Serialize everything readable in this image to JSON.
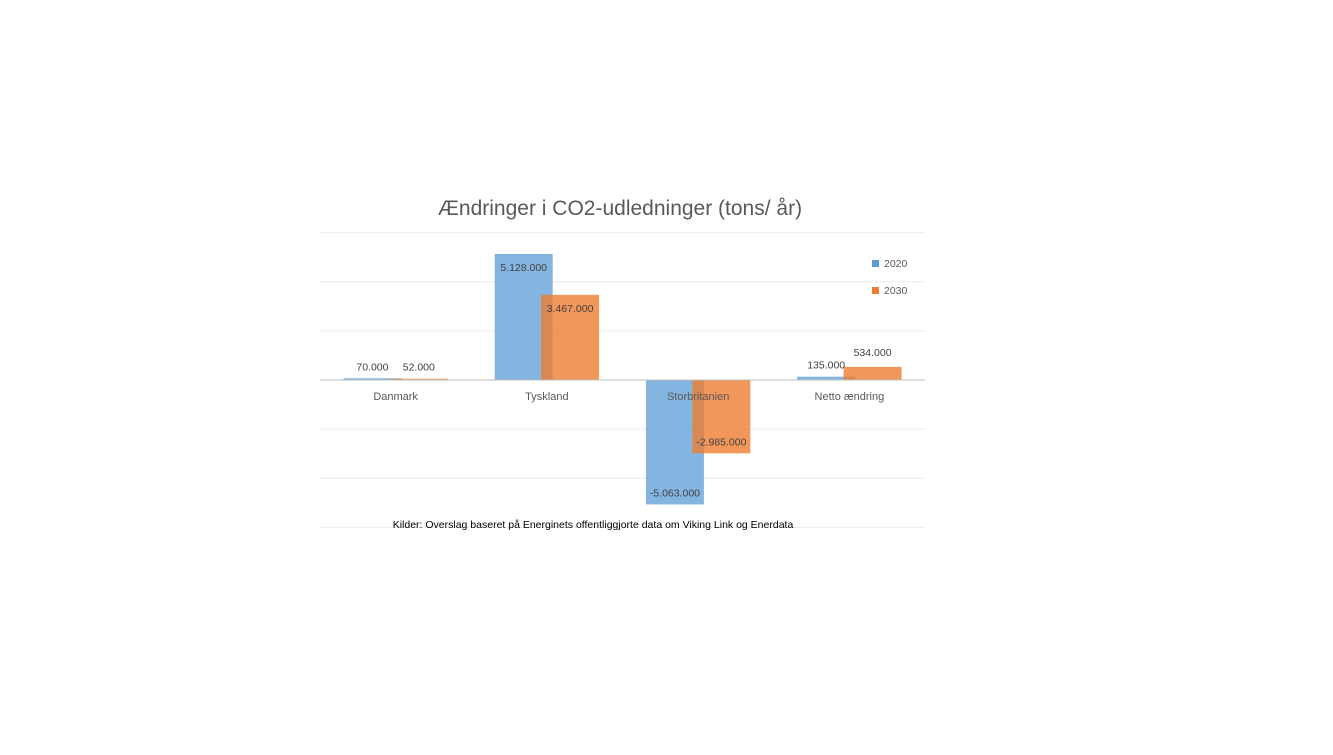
{
  "chart_data": {
    "type": "bar",
    "title": "Ændringer i CO2-udledninger (tons/ år)",
    "categories": [
      "Danmark",
      "Tyskland",
      "Storbritanien",
      "Netto ændring"
    ],
    "series": [
      {
        "name": "2020",
        "color": "#5b9bd5",
        "values": [
          70000,
          5128000,
          -5063000,
          135000
        ],
        "labels": [
          "70.000",
          "5.128.000",
          "-5.063.000",
          "135.000"
        ]
      },
      {
        "name": "2030",
        "color": "#ed7d31",
        "values": [
          52000,
          3467000,
          -2985000,
          534000
        ],
        "labels": [
          "52.000",
          "3.467.000",
          "-2.985.000",
          "534.000"
        ]
      }
    ],
    "ylim": [
      -6000000,
      6000000
    ],
    "grid": true,
    "legend_position": "top-right",
    "source_note": "Kilder: Overslag baseret på Energinets offentliggjorte data om Viking Link og Enerdata"
  }
}
